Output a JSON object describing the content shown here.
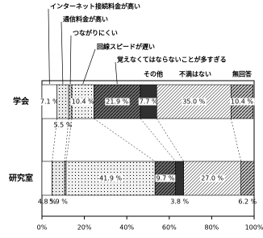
{
  "chart_data": {
    "type": "stacked-bar-horizontal",
    "categories": [
      "学会",
      "研究室"
    ],
    "series": [
      {
        "name": "インターネット接続料金が高い",
        "color": "#ffffff",
        "values": [
          7.1,
          4.8
        ],
        "value_labels": [
          "7.1 %",
          "4.8 %"
        ]
      },
      {
        "name": "通信料金が高い",
        "color": "#e8e8e8",
        "values": [
          5.5,
          5.9
        ],
        "value_labels": [
          "5.5 %",
          "5.9 %"
        ]
      },
      {
        "name": "つながりにくい",
        "color": "#d0d0d0",
        "values": [
          1.5,
          0.7
        ],
        "value_labels": [
          null,
          null
        ]
      },
      {
        "name": "回線スピードが遅い",
        "color": "#f0f0f0",
        "values": [
          10.4,
          41.9
        ],
        "value_labels": [
          "10.4 %",
          "41.9 %"
        ]
      },
      {
        "name": "覚えなくてはならないことが多すぎる",
        "color": "#707070",
        "values": [
          21.9,
          9.7
        ],
        "value_labels": [
          "21.9 %",
          "9.7 %"
        ]
      },
      {
        "name": "その他",
        "color": "#303030",
        "values": [
          7.7,
          3.8
        ],
        "value_labels": [
          "7.7 %",
          "3.8 %"
        ]
      },
      {
        "name": "不満はない",
        "color": "#f4f4f4",
        "values": [
          35.0,
          27.0
        ],
        "value_labels": [
          "35.0 %",
          "27.0 %"
        ]
      },
      {
        "name": "無回答",
        "color": "#c8c8c8",
        "values": [
          10.4,
          6.2
        ],
        "value_labels": [
          "10.4 %",
          "6.2 %"
        ]
      }
    ],
    "xlim": [
      0,
      100
    ],
    "xticks": [
      {
        "value": 0,
        "label": "0%"
      },
      {
        "value": 20,
        "label": "20%"
      },
      {
        "value": 40,
        "label": "40%"
      },
      {
        "value": 60,
        "label": "60%"
      },
      {
        "value": 80,
        "label": "80%"
      },
      {
        "value": 100,
        "label": "100%"
      }
    ]
  }
}
